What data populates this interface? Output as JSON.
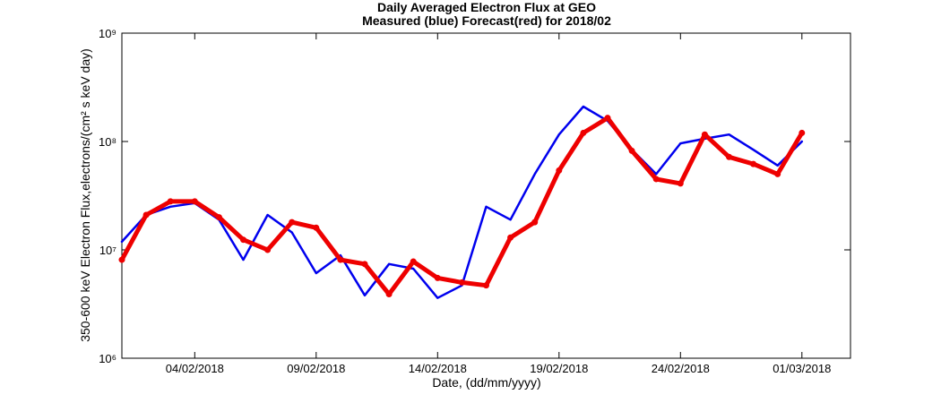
{
  "chart_data": {
    "type": "line",
    "title": "Daily Averaged Electron Flux at GEO",
    "subtitle": "Measured (blue) Forecast(red) for 2018/02",
    "x_label": "Date, (dd/mm/yyyy)",
    "y_label": "350-600 keV Electron Flux,electrons/(cm² s keV day)",
    "log_y": true,
    "x": [
      "01/02/2018",
      "02/02/2018",
      "03/02/2018",
      "04/02/2018",
      "05/02/2018",
      "06/02/2018",
      "07/02/2018",
      "08/02/2018",
      "09/02/2018",
      "10/02/2018",
      "11/02/2018",
      "12/02/2018",
      "13/02/2018",
      "14/02/2018",
      "15/02/2018",
      "16/02/2018",
      "17/02/2018",
      "18/02/2018",
      "19/02/2018",
      "20/02/2018",
      "21/02/2018",
      "22/02/2018",
      "23/02/2018",
      "24/02/2018",
      "25/02/2018",
      "26/02/2018",
      "27/02/2018",
      "28/02/2018",
      "01/03/2018"
    ],
    "series": [
      {
        "name": "Measured",
        "color": "#0000ee",
        "style": "line",
        "values": [
          11900000,
          21000000,
          25000000,
          27000000,
          19000000,
          8100000,
          21000000,
          14500000,
          6100000,
          8900000,
          3800000,
          7400000,
          6700000,
          3600000,
          4700000,
          25000000,
          19000000,
          50000000,
          116000000,
          210000000,
          155000000,
          84000000,
          50000000,
          96000000,
          106000000,
          116000000,
          84000000,
          60000000,
          100000000
        ]
      },
      {
        "name": "Forecast",
        "color": "#ee0000",
        "style": "dots",
        "values": [
          8100000,
          21000000,
          28000000,
          28000000,
          20000000,
          12400000,
          10000000,
          18000000,
          16000000,
          8100000,
          7400000,
          3900000,
          7800000,
          5500000,
          5000000,
          4700000,
          13000000,
          18000000,
          54000000,
          120000000,
          165000000,
          82000000,
          45000000,
          41000000,
          116000000,
          72000000,
          62000000,
          50000000,
          120000000
        ]
      }
    ],
    "xlim": [
      "01/02/2018",
      "03/03/2018"
    ],
    "xticks": [
      "04/02/2018",
      "09/02/2018",
      "14/02/2018",
      "19/02/2018",
      "24/02/2018",
      "01/03/2018"
    ],
    "ylim": [
      1000000,
      1000000000
    ],
    "yticks": [
      {
        "value": 1000000,
        "label": "10⁶"
      },
      {
        "value": 10000000,
        "label": "10⁷"
      },
      {
        "value": 100000000,
        "label": "10⁸"
      },
      {
        "value": 1000000000,
        "label": "10⁹"
      }
    ]
  }
}
